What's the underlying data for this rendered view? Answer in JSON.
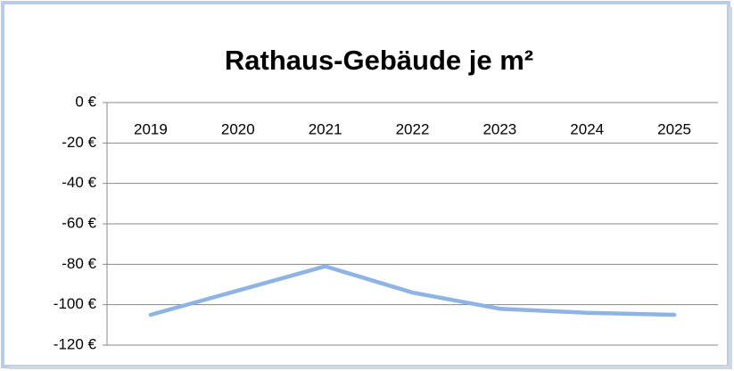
{
  "chart_data": {
    "type": "line",
    "title": "Rathaus-Gebäude je m²",
    "categories": [
      "2019",
      "2020",
      "2021",
      "2022",
      "2023",
      "2024",
      "2025"
    ],
    "series": [
      {
        "color": "#8eb4e3",
        "values": [
          -105,
          -93,
          -81,
          -94,
          -102,
          -104,
          -105
        ]
      }
    ],
    "ylim": [
      -120,
      0
    ],
    "yticks": [
      {
        "value": 0,
        "label": "0 €"
      },
      {
        "value": -20,
        "label": "-20 €"
      },
      {
        "value": -40,
        "label": "-40 €"
      },
      {
        "value": -60,
        "label": "-60 €"
      },
      {
        "value": -80,
        "label": "-80 €"
      },
      {
        "value": -100,
        "label": "-100 €"
      },
      {
        "value": -120,
        "label": "-120 €"
      }
    ],
    "grid": true
  }
}
